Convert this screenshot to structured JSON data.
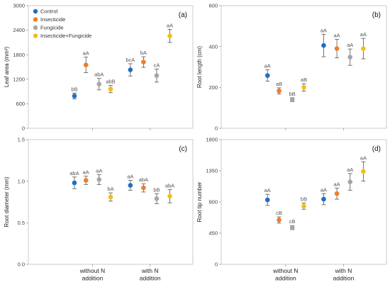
{
  "legend": [
    {
      "name": "Control",
      "color": "#1f6fc0"
    },
    {
      "name": "Insecticide",
      "color": "#ef7d2a"
    },
    {
      "name": "Fungicide",
      "color": "#a6a6a6"
    },
    {
      "name": "Insecticide+Fungicide",
      "color": "#f3bd1a"
    }
  ],
  "x_categories": [
    [
      "without N",
      "addition"
    ],
    [
      "with N",
      "addition"
    ]
  ],
  "chart_data": [
    {
      "type": "scatter",
      "panel_label": "(a)",
      "ylabel": "Leaf area (mm²)",
      "ylim": [
        0,
        3000
      ],
      "yticks": [
        "0",
        "600",
        "1200",
        "1800",
        "2400",
        "3000"
      ],
      "series": [
        {
          "name": "Control",
          "color": "#1f6fc0",
          "values": [
            790,
            1430
          ],
          "errors": [
            70,
            150
          ],
          "labels": [
            "bB",
            "bcA"
          ]
        },
        {
          "name": "Insecticide",
          "color": "#ef7d2a",
          "values": [
            1550,
            1620
          ],
          "errors": [
            190,
            130
          ],
          "labels": [
            "aA",
            "bA"
          ]
        },
        {
          "name": "Fungicide",
          "color": "#a6a6a6",
          "values": [
            1080,
            1290
          ],
          "errors": [
            140,
            160
          ],
          "labels": [
            "abA",
            "cA"
          ]
        },
        {
          "name": "Insecticide+Fungicide",
          "color": "#f3bd1a",
          "values": [
            960,
            2260
          ],
          "errors": [
            90,
            160
          ],
          "labels": [
            "abB",
            "aA"
          ]
        }
      ]
    },
    {
      "type": "scatter",
      "panel_label": "(b)",
      "ylabel": "Root length (cm)",
      "ylim": [
        0,
        600
      ],
      "yticks": [
        "0",
        "200",
        "400",
        "600"
      ],
      "series": [
        {
          "name": "Control",
          "color": "#1f6fc0",
          "values": [
            258,
            405
          ],
          "errors": [
            28,
            55
          ],
          "labels": [
            "aA",
            "aA"
          ]
        },
        {
          "name": "Insecticide",
          "color": "#ef7d2a",
          "values": [
            183,
            390
          ],
          "errors": [
            15,
            45
          ],
          "labels": [
            "aB",
            "aA"
          ]
        },
        {
          "name": "Fungicide",
          "color": "#a6a6a6",
          "values": [
            140,
            348
          ],
          "errors": [
            10,
            40
          ],
          "labels": [
            "bB",
            "aA"
          ]
        },
        {
          "name": "Insecticide+Fungicide",
          "color": "#f3bd1a",
          "values": [
            200,
            390
          ],
          "errors": [
            18,
            50
          ],
          "labels": [
            "aB",
            "aA"
          ]
        }
      ]
    },
    {
      "type": "scatter",
      "panel_label": "(c)",
      "ylabel": "Root diameter (mm)",
      "ylim": [
        0,
        1.5
      ],
      "yticks": [
        "0.0",
        "0.5",
        "1.0",
        "1.5"
      ],
      "series": [
        {
          "name": "Control",
          "color": "#1f6fc0",
          "values": [
            0.98,
            0.95
          ],
          "errors": [
            0.07,
            0.06
          ],
          "labels": [
            "abA",
            "aA"
          ]
        },
        {
          "name": "Insecticide",
          "color": "#ef7d2a",
          "values": [
            1.01,
            0.92
          ],
          "errors": [
            0.05,
            0.05
          ],
          "labels": [
            "aA",
            "abA"
          ]
        },
        {
          "name": "Fungicide",
          "color": "#a6a6a6",
          "values": [
            1.02,
            0.79
          ],
          "errors": [
            0.06,
            0.06
          ],
          "labels": [
            "aA",
            "bB"
          ]
        },
        {
          "name": "Insecticide+Fungicide",
          "color": "#f3bd1a",
          "values": [
            0.81,
            0.82
          ],
          "errors": [
            0.05,
            0.08
          ],
          "labels": [
            "bA",
            "abA"
          ]
        }
      ]
    },
    {
      "type": "scatter",
      "panel_label": "(d)",
      "ylabel": "Root tip number",
      "ylim": [
        0,
        1800
      ],
      "yticks": [
        "0",
        "450",
        "900",
        "1350",
        "1800"
      ],
      "series": [
        {
          "name": "Control",
          "color": "#1f6fc0",
          "values": [
            930,
            940
          ],
          "errors": [
            80,
            80
          ],
          "labels": [
            "aA",
            "aA"
          ]
        },
        {
          "name": "Insecticide",
          "color": "#ef7d2a",
          "values": [
            640,
            1020
          ],
          "errors": [
            45,
            80
          ],
          "labels": [
            "cB",
            "aA"
          ]
        },
        {
          "name": "Fungicide",
          "color": "#a6a6a6",
          "values": [
            530,
            1190
          ],
          "errors": [
            30,
            120
          ],
          "labels": [
            "cB",
            "aA"
          ]
        },
        {
          "name": "Insecticide+Fungicide",
          "color": "#f3bd1a",
          "values": [
            840,
            1340
          ],
          "errors": [
            45,
            140
          ],
          "labels": [
            "bB",
            "aA"
          ]
        }
      ]
    }
  ]
}
